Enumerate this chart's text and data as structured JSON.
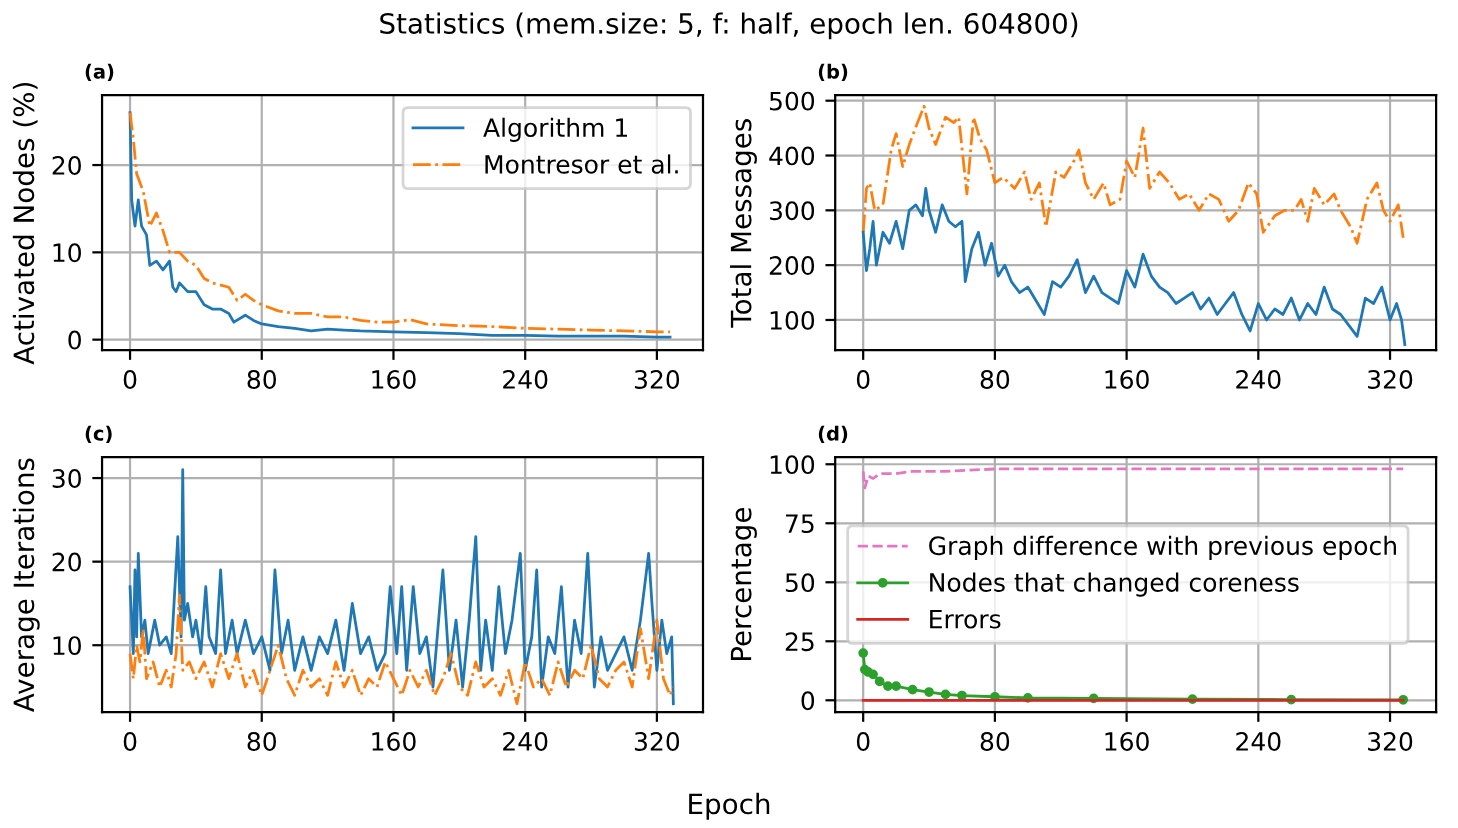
{
  "chart_data": [
    {
      "type": "line",
      "title": "(a)",
      "annotations": [
        "Statistics (mem.size: 5, f: half, epoch len. 604800)"
      ],
      "ylabel": "Activated Nodes (%)",
      "xlim": [
        -17,
        348
      ],
      "xticks": [
        0,
        80,
        160,
        240,
        320
      ],
      "ylim": [
        -1.2,
        28
      ],
      "yticks": [
        0,
        10,
        20
      ],
      "grid": true,
      "legend": "top right",
      "series": [
        {
          "name": "Algorithm 1",
          "color": "#1f77b4",
          "line_style": "solid",
          "x": [
            0,
            1,
            3,
            5,
            7,
            10,
            12,
            16,
            20,
            24,
            26,
            28,
            30,
            35,
            40,
            45,
            50,
            55,
            60,
            63,
            70,
            75,
            80,
            90,
            100,
            110,
            120,
            130,
            140,
            160,
            180,
            200,
            220,
            240,
            260,
            280,
            300,
            320,
            328
          ],
          "values": [
            26,
            16,
            13,
            16,
            13,
            12,
            8.5,
            9,
            8,
            9,
            6,
            5.5,
            6.5,
            5.5,
            5.5,
            4,
            3.5,
            3.5,
            3,
            2,
            2.8,
            2.2,
            1.8,
            1.5,
            1.3,
            1.0,
            1.2,
            1.1,
            1.0,
            0.9,
            0.8,
            0.7,
            0.5,
            0.5,
            0.4,
            0.4,
            0.4,
            0.3,
            0.3
          ]
        },
        {
          "name": "Montresor et al.",
          "color": "#ff7f0e",
          "line_style": "dashdot",
          "x": [
            0,
            2,
            4,
            8,
            12,
            16,
            20,
            24,
            30,
            35,
            40,
            45,
            50,
            60,
            65,
            70,
            75,
            80,
            90,
            100,
            110,
            120,
            130,
            140,
            150,
            160,
            170,
            180,
            200,
            220,
            240,
            260,
            280,
            300,
            320,
            328
          ],
          "values": [
            26,
            23,
            19,
            17,
            13,
            14.5,
            12.5,
            10,
            10,
            9,
            8.5,
            7,
            6.5,
            6,
            4.5,
            5.2,
            4.5,
            4,
            3.3,
            3,
            3,
            2.6,
            2.6,
            2.2,
            2,
            2,
            2.3,
            1.8,
            1.6,
            1.5,
            1.3,
            1.2,
            1.1,
            1.0,
            0.9,
            0.9
          ]
        }
      ]
    },
    {
      "type": "line",
      "title": "(b)",
      "ylabel": "Total Messages",
      "xlim": [
        -17,
        348
      ],
      "xticks": [
        0,
        80,
        160,
        240,
        320
      ],
      "ylim": [
        45,
        510
      ],
      "yticks": [
        100,
        200,
        300,
        400,
        500
      ],
      "grid": true,
      "series": [
        {
          "color": "#ff7f0e",
          "line_style": "dashdot",
          "x": [
            0,
            2,
            4,
            7,
            12,
            17,
            20,
            24,
            28,
            33,
            37,
            40,
            44,
            50,
            55,
            58,
            63,
            67,
            71,
            75,
            80,
            85,
            92,
            98,
            102,
            107,
            111,
            117,
            122,
            128,
            131,
            135,
            140,
            146,
            150,
            156,
            160,
            165,
            170,
            174,
            180,
            186,
            192,
            198,
            204,
            210,
            216,
            222,
            228,
            234,
            239,
            243,
            250,
            256,
            262,
            266,
            270,
            274,
            280,
            286,
            290,
            296,
            300,
            306,
            312,
            316,
            320,
            325,
            328
          ],
          "values": [
            260,
            340,
            350,
            300,
            310,
            410,
            440,
            380,
            420,
            460,
            490,
            450,
            420,
            470,
            460,
            470,
            330,
            470,
            430,
            410,
            350,
            360,
            340,
            370,
            320,
            350,
            270,
            370,
            360,
            390,
            410,
            350,
            320,
            350,
            310,
            320,
            390,
            360,
            450,
            340,
            370,
            350,
            320,
            330,
            300,
            330,
            320,
            280,
            300,
            350,
            330,
            260,
            290,
            300,
            300,
            320,
            280,
            340,
            310,
            330,
            300,
            270,
            240,
            320,
            350,
            300,
            280,
            310,
            250
          ]
        },
        {
          "color": "#1f77b4",
          "line_style": "solid",
          "x": [
            0,
            2,
            4,
            6,
            8,
            12,
            16,
            20,
            24,
            28,
            32,
            36,
            38,
            40,
            44,
            48,
            52,
            56,
            60,
            62,
            66,
            70,
            74,
            78,
            82,
            86,
            90,
            95,
            100,
            106,
            110,
            115,
            120,
            125,
            130,
            135,
            140,
            145,
            150,
            155,
            160,
            165,
            170,
            175,
            180,
            185,
            190,
            195,
            200,
            205,
            210,
            215,
            220,
            225,
            230,
            235,
            240,
            245,
            250,
            255,
            260,
            265,
            270,
            275,
            280,
            285,
            290,
            295,
            300,
            305,
            310,
            315,
            320,
            324,
            327,
            329
          ],
          "values": [
            260,
            190,
            230,
            280,
            200,
            260,
            240,
            280,
            230,
            300,
            310,
            290,
            340,
            300,
            260,
            310,
            280,
            270,
            280,
            170,
            230,
            260,
            200,
            240,
            180,
            200,
            170,
            150,
            160,
            130,
            110,
            170,
            160,
            180,
            210,
            150,
            180,
            150,
            140,
            130,
            190,
            160,
            220,
            180,
            160,
            150,
            130,
            140,
            150,
            120,
            140,
            110,
            130,
            150,
            110,
            80,
            130,
            100,
            120,
            110,
            140,
            100,
            130,
            110,
            160,
            120,
            110,
            90,
            70,
            140,
            130,
            160,
            100,
            130,
            100,
            55
          ]
        }
      ]
    },
    {
      "type": "line",
      "title": "(c)",
      "ylabel": "Average Iterations",
      "xlabel": "Epoch",
      "xlim": [
        -17,
        348
      ],
      "xticks": [
        0,
        80,
        160,
        240,
        320
      ],
      "ylim": [
        2,
        32.5
      ],
      "yticks": [
        10,
        20,
        30
      ],
      "grid": true,
      "series": [
        {
          "color": "#1f77b4",
          "line_style": "solid",
          "x": [
            0,
            2,
            3,
            4,
            5,
            7,
            9,
            11,
            13,
            15,
            18,
            22,
            25,
            29,
            31,
            32,
            33,
            35,
            38,
            40,
            43,
            46,
            48,
            52,
            55,
            58,
            62,
            65,
            70,
            75,
            80,
            85,
            88,
            92,
            96,
            100,
            105,
            110,
            115,
            120,
            125,
            130,
            135,
            140,
            145,
            150,
            155,
            158,
            162,
            165,
            168,
            172,
            176,
            180,
            184,
            190,
            194,
            198,
            202,
            206,
            210,
            213,
            216,
            220,
            224,
            228,
            232,
            237,
            240,
            244,
            247,
            250,
            254,
            258,
            262,
            266,
            270,
            274,
            278,
            282,
            286,
            290,
            295,
            300,
            305,
            310,
            315,
            317,
            320,
            323,
            326,
            329,
            330
          ],
          "values": [
            17,
            9,
            19,
            11,
            21,
            11,
            13,
            9,
            11,
            13,
            10,
            11,
            9,
            23,
            11,
            31,
            13,
            15,
            11,
            13,
            9,
            17,
            11,
            9,
            19,
            9,
            13,
            9,
            13,
            9,
            11,
            7,
            19,
            9,
            13,
            7,
            11,
            7,
            11,
            9,
            13,
            7,
            15,
            9,
            11,
            7,
            9,
            17,
            9,
            17,
            7,
            17,
            9,
            11,
            5,
            19,
            7,
            13,
            5,
            13,
            23,
            7,
            13,
            7,
            17,
            9,
            13,
            21,
            7,
            11,
            19,
            5,
            11,
            9,
            17,
            5,
            13,
            9,
            21,
            5,
            11,
            7,
            9,
            11,
            7,
            13,
            21,
            15,
            7,
            13,
            9,
            11,
            3
          ]
        },
        {
          "color": "#ff7f0e",
          "line_style": "dashdot",
          "x": [
            0,
            2,
            4,
            6,
            8,
            10,
            14,
            18,
            22,
            25,
            28,
            30,
            32,
            36,
            40,
            45,
            50,
            55,
            60,
            65,
            70,
            75,
            80,
            85,
            90,
            95,
            100,
            105,
            110,
            115,
            120,
            125,
            130,
            135,
            140,
            145,
            150,
            155,
            160,
            165,
            170,
            175,
            180,
            185,
            190,
            195,
            200,
            205,
            210,
            215,
            220,
            225,
            230,
            235,
            240,
            245,
            250,
            255,
            260,
            265,
            270,
            275,
            280,
            285,
            290,
            295,
            300,
            305,
            310,
            315,
            320,
            324,
            328,
            330
          ],
          "values": [
            9,
            6,
            10,
            8,
            12,
            6,
            8,
            5,
            7,
            5,
            9,
            16,
            7,
            8,
            6,
            8,
            5,
            9,
            6,
            9,
            5,
            7,
            4,
            7,
            10,
            6,
            4,
            7,
            5,
            6,
            4,
            8,
            5,
            7,
            4,
            6,
            5,
            8,
            6,
            4,
            7,
            5,
            7,
            4,
            6,
            9,
            5,
            4,
            8,
            5,
            6,
            4,
            7,
            3,
            8,
            5,
            6,
            4,
            8,
            5,
            7,
            6,
            10,
            6,
            5,
            7,
            8,
            5,
            12,
            6,
            13,
            6,
            4,
            5
          ]
        }
      ]
    },
    {
      "type": "line",
      "title": "(d)",
      "ylabel": "Percentage",
      "xlim": [
        -17,
        348
      ],
      "xticks": [
        0,
        80,
        160,
        240,
        320
      ],
      "ylim": [
        -5,
        103
      ],
      "yticks": [
        0,
        25,
        50,
        75,
        100
      ],
      "grid": true,
      "legend": "left",
      "series": [
        {
          "name": "Graph difference with previous epoch",
          "color": "#e377c2",
          "line_style": "dashed",
          "x": [
            0,
            1,
            3,
            6,
            10,
            20,
            30,
            50,
            80,
            120,
            160,
            200,
            240,
            280,
            328
          ],
          "values": [
            97,
            90,
            95,
            94,
            96,
            96,
            97,
            97,
            98,
            98,
            98,
            98,
            98,
            98,
            98
          ]
        },
        {
          "name": "Nodes that changed coreness",
          "color": "#2ca02c",
          "line_style": "solid",
          "marker": "circle",
          "x": [
            0,
            1,
            3,
            6,
            10,
            15,
            20,
            30,
            40,
            50,
            60,
            80,
            100,
            140,
            200,
            260,
            328
          ],
          "values": [
            20,
            13,
            12,
            11,
            8,
            6,
            6,
            4.5,
            3.5,
            2.5,
            2,
            1.5,
            1.0,
            0.8,
            0.5,
            0.3,
            0.2
          ]
        },
        {
          "name": "Errors",
          "color": "#d62728",
          "line_style": "solid",
          "x": [
            0,
            328
          ],
          "values": [
            0,
            0
          ]
        }
      ]
    }
  ]
}
